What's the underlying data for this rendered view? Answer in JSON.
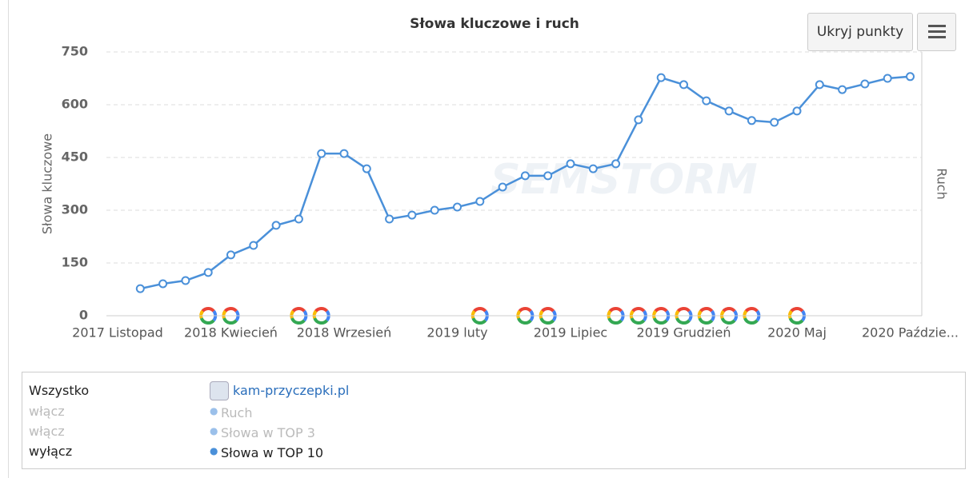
{
  "chart_data": {
    "type": "line",
    "title": "Słowa kluczowe i ruch",
    "y_axis_label": "Słowa kluczowe",
    "y2_axis_label": "Ruch",
    "watermark": "SEMSTORM",
    "categories": [
      "2017 Listopad",
      null,
      null,
      null,
      null,
      "2018 Kwiecień",
      null,
      null,
      null,
      null,
      "2018 Wrzesień",
      null,
      null,
      null,
      null,
      "2019 luty",
      null,
      null,
      null,
      null,
      "2019 Lipiec",
      null,
      null,
      null,
      null,
      "2019 Grudzień",
      null,
      null,
      null,
      null,
      "2020 Maj",
      null,
      null,
      null,
      null,
      "2020 Paździe..."
    ],
    "series": [
      {
        "name": "Słowa w TOP 10",
        "color": "#4a90d9",
        "values": [
          null,
          77,
          91,
          100,
          123,
          173,
          200,
          257,
          275,
          461,
          461,
          418,
          275,
          286,
          300,
          309,
          325,
          366,
          398,
          398,
          432,
          418,
          432,
          557,
          677,
          657,
          611,
          582,
          555,
          550,
          582,
          657,
          643,
          659,
          675,
          680
        ]
      }
    ],
    "ylim": [
      0,
      750
    ],
    "yticks": [
      0,
      150,
      300,
      450,
      600,
      750
    ],
    "grid": true
  },
  "buttons": {
    "hide_points": "Ukryj punkty"
  },
  "legend_panel": {
    "all": "Wszystko",
    "site": "kam-przyczepki.pl",
    "rows": [
      {
        "toggle": "włącz",
        "name": "Ruch"
      },
      {
        "toggle": "włącz",
        "name": "Słowa w TOP 3"
      },
      {
        "toggle": "wyłącz"
      }
    ]
  }
}
